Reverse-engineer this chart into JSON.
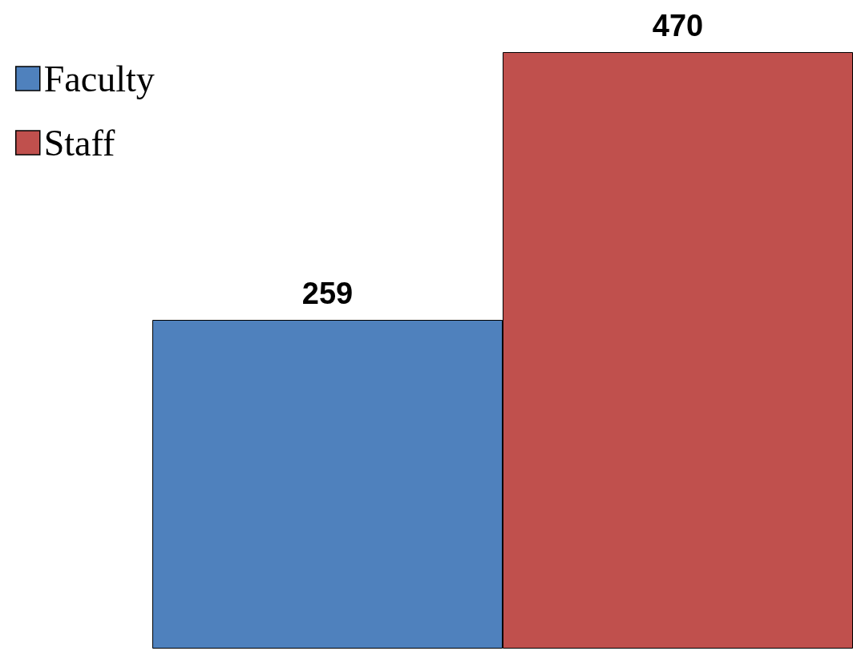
{
  "chart_data": {
    "type": "bar",
    "categories": [
      null
    ],
    "series": [
      {
        "name": "Faculty",
        "color": "#4f81bd",
        "values": [
          259
        ]
      },
      {
        "name": "Staff",
        "color": "#c0504d",
        "values": [
          470
        ]
      }
    ],
    "data_labels": true,
    "legend": "top left",
    "grid": false
  }
}
